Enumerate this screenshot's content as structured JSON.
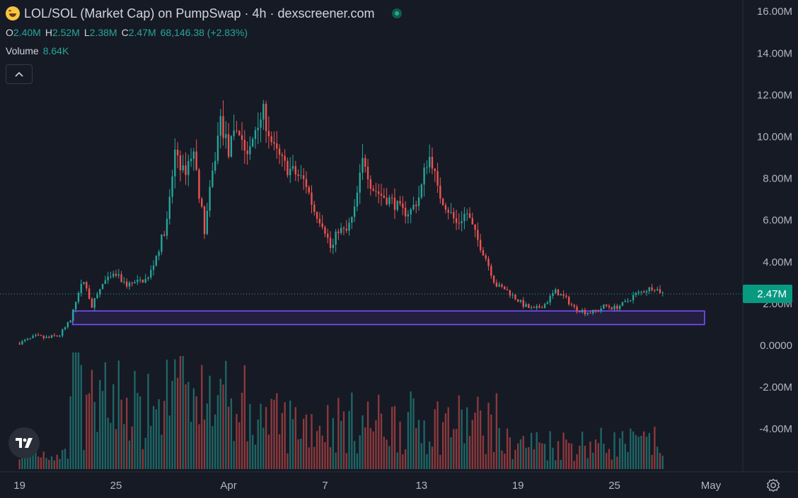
{
  "header": {
    "title": "LOL/SOL (Market Cap) on PumpSwap · 4h · dexscreener.com",
    "open_label": "O",
    "open": "2.40M",
    "high_label": "H",
    "high": "2.52M",
    "low_label": "L",
    "low": "2.38M",
    "close_label": "C",
    "close": "2.47M",
    "change": "68,146.38 (+2.83%)",
    "volume_label": "Volume",
    "volume": "8.64K"
  },
  "colors": {
    "background": "#161a25",
    "up": "#26a69a",
    "down": "#ef5350",
    "zone": "#7c4dff",
    "text": "#d1d4dc"
  },
  "icons": {
    "logo": "tradingview-logo-icon",
    "collapse": "chevron-up-icon",
    "settings": "gear-icon",
    "status": "live-status-icon"
  },
  "chart_data": {
    "type": "candlestick",
    "y_ticks": [
      "16.00M",
      "14.00M",
      "12.00M",
      "10.00M",
      "8.00M",
      "6.00M",
      "4.00M",
      "2.00M",
      "0.0000",
      "-2.00M",
      "-4.00M"
    ],
    "ylim": [
      -5.8,
      16.5
    ],
    "x_ticks": [
      {
        "label": "19",
        "day": 0
      },
      {
        "label": "25",
        "day": 6
      },
      {
        "label": "Apr",
        "day": 13
      },
      {
        "label": "7",
        "day": 19
      },
      {
        "label": "13",
        "day": 25
      },
      {
        "label": "19",
        "day": 31
      },
      {
        "label": "25",
        "day": 37
      },
      {
        "label": "May",
        "day": 43
      }
    ],
    "xlim": [
      -0.6,
      45.6
    ],
    "last_price_label": "2.47M",
    "last_price": 2.47,
    "zone": {
      "x_start_day": 3.3,
      "x_end_day": 42.6,
      "y_low": 1.0,
      "y_high": 1.65
    },
    "price_path": [
      [
        0,
        0.1
      ],
      [
        1,
        0.4
      ],
      [
        1.8,
        0.35
      ],
      [
        2.5,
        0.5
      ],
      [
        3.2,
        1.2
      ],
      [
        3.6,
        2.5
      ],
      [
        4.0,
        3.1
      ],
      [
        4.5,
        1.9
      ],
      [
        5.2,
        3.0
      ],
      [
        6,
        3.4
      ],
      [
        6.6,
        2.9
      ],
      [
        7.2,
        3.0
      ],
      [
        8.0,
        3.2
      ],
      [
        8.6,
        4.5
      ],
      [
        9.2,
        6.0
      ],
      [
        9.7,
        9.5
      ],
      [
        10.2,
        8.2
      ],
      [
        10.8,
        9.4
      ],
      [
        11.5,
        5.5
      ],
      [
        12.0,
        8.2
      ],
      [
        12.5,
        10.8
      ],
      [
        13.0,
        9.3
      ],
      [
        13.6,
        10.5
      ],
      [
        14.2,
        8.9
      ],
      [
        14.8,
        10.9
      ],
      [
        15.2,
        11.1
      ],
      [
        15.8,
        9.4
      ],
      [
        16.5,
        8.6
      ],
      [
        17.2,
        8.2
      ],
      [
        17.8,
        7.8
      ],
      [
        18.3,
        6.5
      ],
      [
        18.9,
        5.8
      ],
      [
        19.4,
        4.5
      ],
      [
        19.8,
        5.6
      ],
      [
        20.3,
        5.4
      ],
      [
        20.8,
        6.3
      ],
      [
        21.4,
        9.1
      ],
      [
        21.9,
        7.6
      ],
      [
        22.5,
        7.2
      ],
      [
        23.2,
        6.9
      ],
      [
        23.8,
        6.4
      ],
      [
        24.3,
        6.4
      ],
      [
        24.9,
        7.2
      ],
      [
        25.3,
        8.8
      ],
      [
        25.6,
        9.1
      ],
      [
        26.0,
        7.4
      ],
      [
        26.6,
        6.6
      ],
      [
        27.2,
        5.8
      ],
      [
        27.8,
        6.4
      ],
      [
        28.4,
        5.2
      ],
      [
        29.0,
        4.2
      ],
      [
        29.6,
        2.9
      ],
      [
        30.2,
        2.7
      ],
      [
        30.8,
        2.3
      ],
      [
        31.4,
        1.9
      ],
      [
        32.0,
        1.7
      ],
      [
        32.7,
        2.0
      ],
      [
        33.3,
        2.6
      ],
      [
        33.9,
        2.3
      ],
      [
        34.5,
        1.8
      ],
      [
        35.2,
        1.6
      ],
      [
        35.8,
        1.6
      ],
      [
        36.4,
        1.9
      ],
      [
        37.0,
        1.8
      ],
      [
        37.6,
        2.0
      ],
      [
        38.2,
        2.4
      ],
      [
        38.8,
        2.6
      ],
      [
        39.4,
        2.8
      ],
      [
        40.0,
        2.5
      ]
    ],
    "volume_series": {
      "name": "Volume",
      "last": "8.64K"
    }
  }
}
